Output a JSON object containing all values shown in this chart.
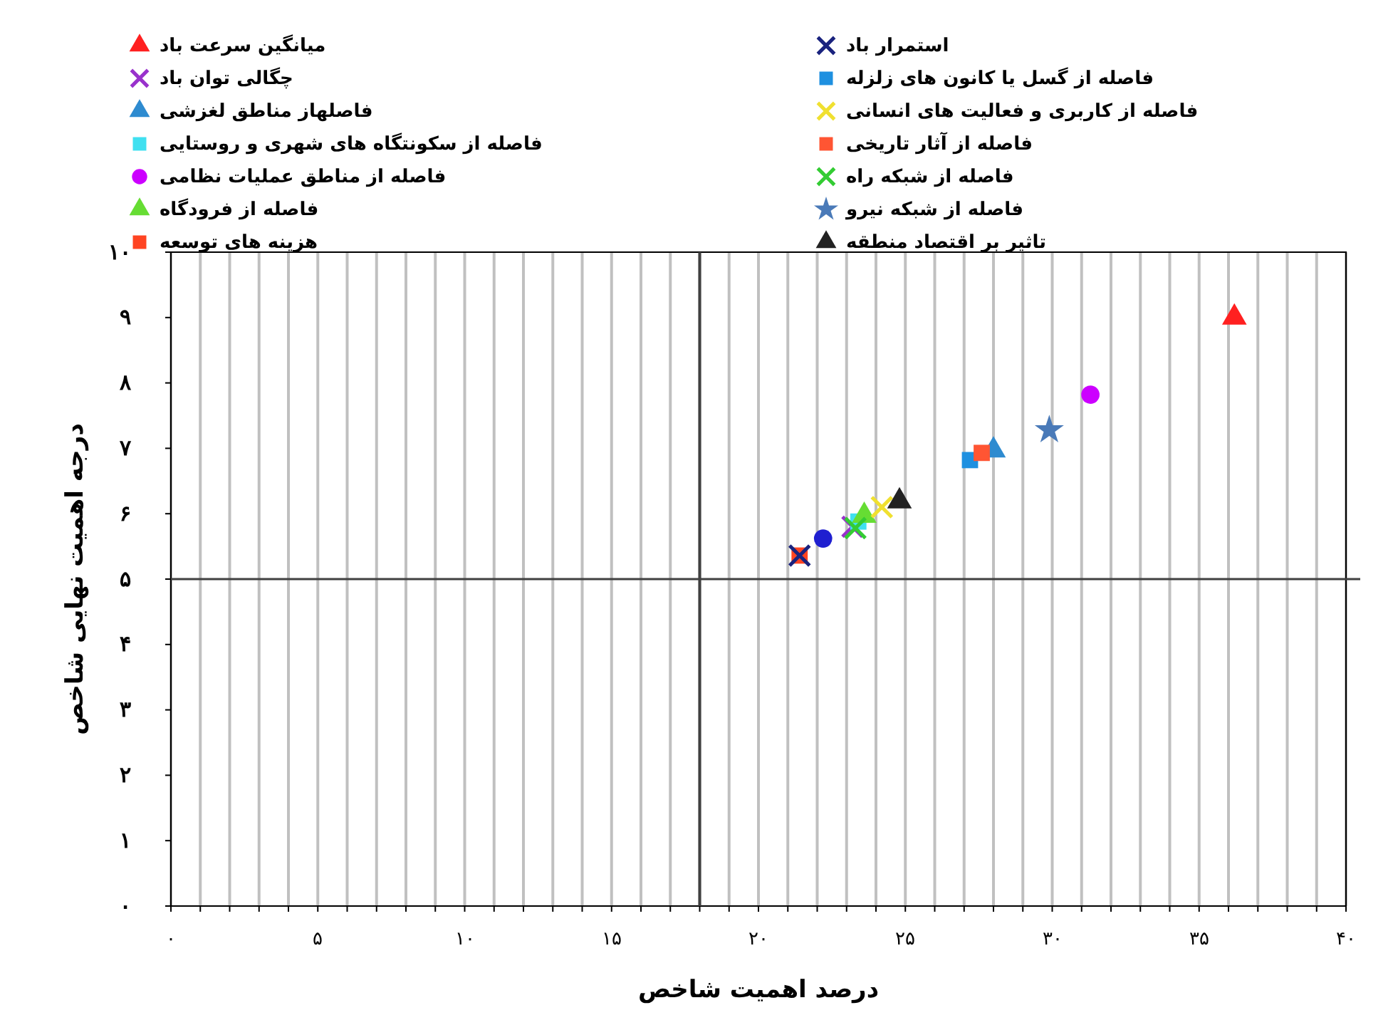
{
  "chart_data": {
    "type": "scatter",
    "xlabel": "درصد اهمیت شاخص",
    "ylabel": "درجه اهمیت نهایی شاخص",
    "xlim": [
      0,
      40
    ],
    "ylim": [
      0,
      10
    ],
    "xticks": [
      {
        "value": 0,
        "label": "۰"
      },
      {
        "value": 1,
        "label": null
      },
      {
        "value": 2,
        "label": null
      },
      {
        "value": 3,
        "label": null
      },
      {
        "value": 4,
        "label": null
      },
      {
        "value": 5,
        "label": "۵"
      },
      {
        "value": 6,
        "label": null
      },
      {
        "value": 7,
        "label": null
      },
      {
        "value": 8,
        "label": null
      },
      {
        "value": 9,
        "label": null
      },
      {
        "value": 10,
        "label": "۱۰"
      },
      {
        "value": 11,
        "label": null
      },
      {
        "value": 12,
        "label": null
      },
      {
        "value": 13,
        "label": null
      },
      {
        "value": 14,
        "label": null
      },
      {
        "value": 15,
        "label": "۱۵"
      },
      {
        "value": 16,
        "label": null
      },
      {
        "value": 17,
        "label": null
      },
      {
        "value": 18,
        "label": null
      },
      {
        "value": 19,
        "label": null
      },
      {
        "value": 20,
        "label": "۲۰"
      },
      {
        "value": 21,
        "label": null
      },
      {
        "value": 22,
        "label": null
      },
      {
        "value": 23,
        "label": null
      },
      {
        "value": 24,
        "label": null
      },
      {
        "value": 25,
        "label": "۲۵"
      },
      {
        "value": 26,
        "label": null
      },
      {
        "value": 27,
        "label": null
      },
      {
        "value": 28,
        "label": null
      },
      {
        "value": 29,
        "label": null
      },
      {
        "value": 30,
        "label": "۳۰"
      },
      {
        "value": 31,
        "label": null
      },
      {
        "value": 32,
        "label": null
      },
      {
        "value": 33,
        "label": null
      },
      {
        "value": 34,
        "label": null
      },
      {
        "value": 35,
        "label": "۳۵"
      },
      {
        "value": 36,
        "label": null
      },
      {
        "value": 37,
        "label": null
      },
      {
        "value": 38,
        "label": null
      },
      {
        "value": 39,
        "label": null
      },
      {
        "value": 40,
        "label": "۴۰"
      }
    ],
    "yticks": [
      {
        "value": 0,
        "label": "۰"
      },
      {
        "value": 1,
        "label": "۱"
      },
      {
        "value": 2,
        "label": "۲"
      },
      {
        "value": 3,
        "label": "۳"
      },
      {
        "value": 4,
        "label": "۴"
      },
      {
        "value": 5,
        "label": "۵"
      },
      {
        "value": 6,
        "label": "۶"
      },
      {
        "value": 7,
        "label": "۷"
      },
      {
        "value": 8,
        "label": "۸"
      },
      {
        "value": 9,
        "label": "۹"
      },
      {
        "value": 10,
        "label": "۱۰"
      }
    ],
    "grid": "x",
    "legend": "top",
    "ref_lines": [
      {
        "axis": "x",
        "value": 18,
        "color": "#404040"
      },
      {
        "axis": "y",
        "value": 5,
        "color": "#404040"
      }
    ],
    "series": [
      {
        "name": "میانگین سرعت باد",
        "color": "#ff2020",
        "marker": "triangle",
        "x": [
          36.2
        ],
        "values": [
          9.0
        ]
      },
      {
        "name": "چگالی توان باد",
        "color": "#9932cc",
        "marker": "cross",
        "x": [
          23.2
        ],
        "values": [
          5.8
        ]
      },
      {
        "name": "فاصلهاز مناطق لغزشی",
        "color": "#2e8bd0",
        "marker": "triangle",
        "x": [
          28.0
        ],
        "values": [
          6.97
        ]
      },
      {
        "name": "فاصله از سکونتگاه های شهری و روستایی",
        "color": "#40e0f0",
        "marker": "square",
        "x": [
          23.4
        ],
        "values": [
          5.88
        ]
      },
      {
        "name": "فاصله از مناطق عملیات نظامی",
        "color": "#cc00ff",
        "marker": "circle",
        "x": [
          31.3
        ],
        "values": [
          7.82
        ]
      },
      {
        "name": "فاصله از فرودگاه",
        "color": "#66dd33",
        "marker": "triangle",
        "x": [
          23.6
        ],
        "values": [
          5.97
        ]
      },
      {
        "name": "هزینه های توسعه",
        "color": "#ff4422",
        "marker": "square",
        "x": [
          21.4
        ],
        "values": [
          5.36
        ]
      },
      {
        "name": "استمرار باد",
        "color": "#1a237e",
        "marker": "cross",
        "x": [
          21.4
        ],
        "values": [
          5.36
        ]
      },
      {
        "name": "فاصله از گسل یا کانون های زلزله",
        "color": "#1e90e0",
        "marker": "square",
        "x": [
          27.2
        ],
        "values": [
          6.82
        ]
      },
      {
        "name": "فاصله از کاربری و فعالیت های انسانی",
        "color": "#f0e030",
        "marker": "cross",
        "x": [
          24.2
        ],
        "values": [
          6.1
        ]
      },
      {
        "name": "فاصله از آثار تاریخی",
        "color": "#ff5533",
        "marker": "square",
        "x": [
          27.6
        ],
        "values": [
          6.93
        ]
      },
      {
        "name": "فاصله از شبکه راه",
        "color": "#33cc33",
        "marker": "cross",
        "x": [
          23.3
        ],
        "values": [
          5.78
        ]
      },
      {
        "name": "فاصله از شبکه نیرو",
        "color": "#4a7ab8",
        "marker": "star",
        "x": [
          29.9
        ],
        "values": [
          7.28
        ]
      },
      {
        "name": "تاثیر بر اقتصاد منطقه",
        "color": "#222222",
        "marker": "triangle",
        "x": [
          24.8
        ],
        "values": [
          6.19
        ]
      },
      {
        "color": "#1f1fd0",
        "marker": "circle",
        "x": [
          22.2
        ],
        "values": [
          5.62
        ]
      }
    ]
  }
}
